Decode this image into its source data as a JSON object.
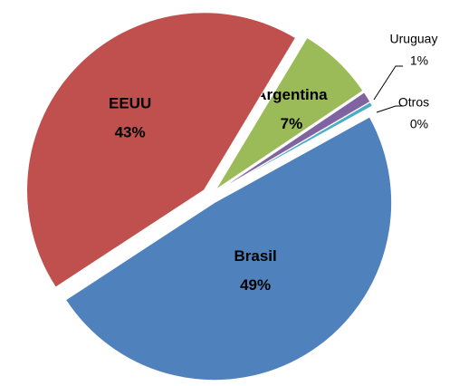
{
  "chart_data": {
    "type": "pie",
    "categories": [
      "Argentina",
      "Uruguay",
      "Otros",
      "Brasil",
      "EEUU"
    ],
    "values": [
      7,
      1,
      0.4,
      49,
      43
    ],
    "value_labels": [
      "7%",
      "1%",
      "0%",
      "49%",
      "43%"
    ],
    "colors": [
      "#9bbb59",
      "#8064a2",
      "#4bacc6",
      "#4f81bd",
      "#c0504d"
    ],
    "start_angle": 31
  }
}
